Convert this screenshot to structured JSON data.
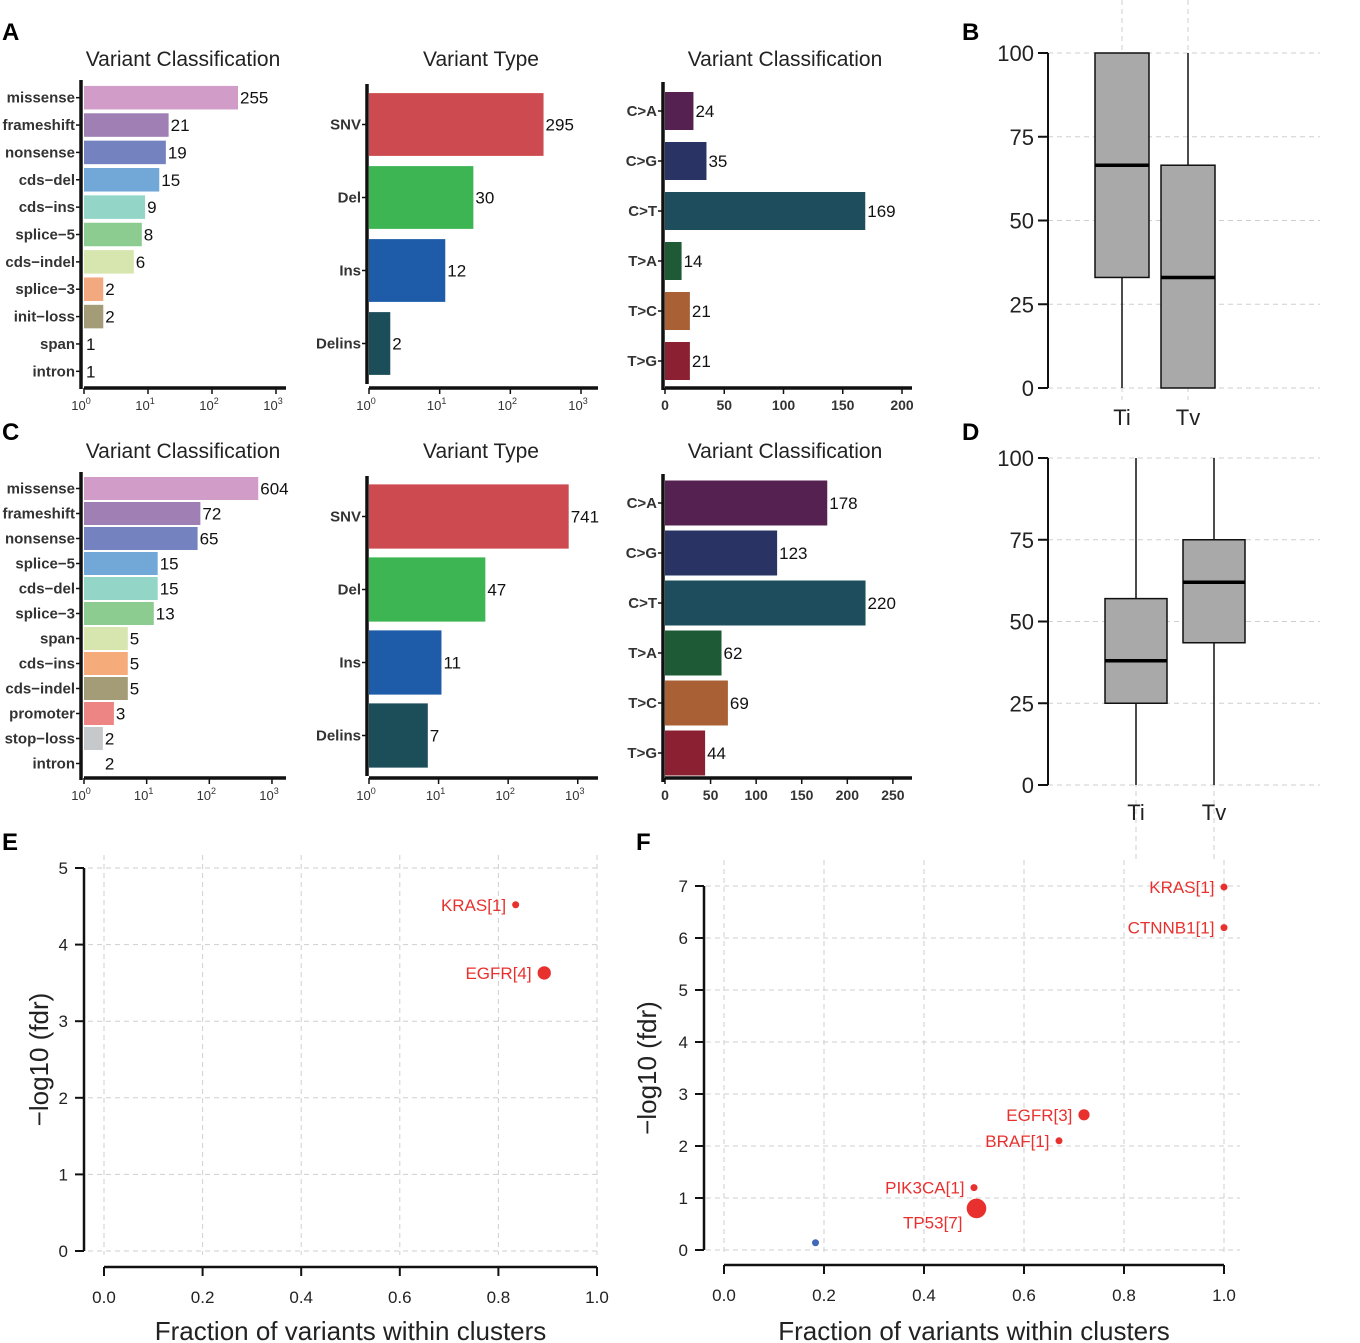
{
  "panels": {
    "A": {
      "label": "A",
      "classification": {
        "type": "bar",
        "orientation": "horizontal",
        "scale": "log10",
        "title": "Variant Classification",
        "categories": [
          "missense",
          "frameshift",
          "nonsense",
          "cds−del",
          "cds−ins",
          "splice−5",
          "cds−indel",
          "splice−3",
          "init−loss",
          "span",
          "intron"
        ],
        "values": [
          255,
          21,
          19,
          15,
          9,
          8,
          6,
          2,
          2,
          1,
          1
        ],
        "colors": [
          "#d29cc9",
          "#a07fb5",
          "#7482c0",
          "#72a8d8",
          "#93d6c8",
          "#8dcc90",
          "#d7e6ae",
          "#f2a97f",
          "#a39c76",
          "#ffffff",
          "#ffffff"
        ],
        "xlim": [
          1,
          1000
        ],
        "ticks": [
          {
            "v": 1,
            "b": "10",
            "e": "0"
          },
          {
            "v": 10,
            "b": "10",
            "e": "1"
          },
          {
            "v": 100,
            "b": "10",
            "e": "2"
          },
          {
            "v": 1000,
            "b": "10",
            "e": "3"
          }
        ]
      },
      "type": {
        "type": "bar",
        "orientation": "horizontal",
        "scale": "log10",
        "title": "Variant Type",
        "categories": [
          "SNV",
          "Del",
          "Ins",
          "Delins"
        ],
        "values": [
          295,
          30,
          12,
          2
        ],
        "colors": [
          "#cc4a50",
          "#3db553",
          "#1e5ca9",
          "#1c4e5a"
        ],
        "xlim": [
          1,
          1000
        ],
        "ticks": [
          {
            "v": 1,
            "b": "10",
            "e": "0"
          },
          {
            "v": 10,
            "b": "10",
            "e": "1"
          },
          {
            "v": 100,
            "b": "10",
            "e": "2"
          },
          {
            "v": 1000,
            "b": "10",
            "e": "3"
          }
        ]
      },
      "snv": {
        "type": "bar",
        "orientation": "horizontal",
        "scale": "linear",
        "title": "Variant Classification",
        "categories": [
          "C>A",
          "C>G",
          "C>T",
          "T>A",
          "T>C",
          "T>G"
        ],
        "values": [
          24,
          35,
          169,
          14,
          21,
          21
        ],
        "colors": [
          "#552150",
          "#2a3464",
          "#1e4e5e",
          "#1d5a35",
          "#a86034",
          "#8a2032"
        ],
        "xlim": [
          0,
          200
        ],
        "ticks": [
          {
            "v": 0,
            "t": "0"
          },
          {
            "v": 50,
            "t": "50"
          },
          {
            "v": 100,
            "t": "100"
          },
          {
            "v": 150,
            "t": "150"
          },
          {
            "v": 200,
            "t": "200"
          }
        ]
      }
    },
    "B": {
      "label": "B",
      "type": "box",
      "categories": [
        "Ti",
        "Tv"
      ],
      "boxes": [
        {
          "min": 0,
          "q1": 33,
          "median": 66.5,
          "q3": 100,
          "max": 100
        },
        {
          "min": 0,
          "q1": 0,
          "median": 33,
          "q3": 66.5,
          "max": 100
        }
      ],
      "ylim": [
        0,
        100
      ],
      "yticks": [
        "0",
        "25",
        "50",
        "75",
        "100"
      ]
    },
    "C": {
      "label": "C",
      "classification": {
        "type": "bar",
        "orientation": "horizontal",
        "scale": "log10",
        "title": "Variant Classification",
        "categories": [
          "missense",
          "frameshift",
          "nonsense",
          "splice−5",
          "cds−del",
          "splice−3",
          "span",
          "cds−ins",
          "cds−indel",
          "promoter",
          "stop−loss",
          "intron"
        ],
        "values": [
          604,
          72,
          65,
          15,
          15,
          13,
          5,
          5,
          5,
          3,
          2,
          2
        ],
        "colors": [
          "#d29cc9",
          "#a07fb5",
          "#7482c0",
          "#72a8d8",
          "#93d6c8",
          "#8dcc90",
          "#d7e6ae",
          "#f6ab7b",
          "#a39c76",
          "#ec8584",
          "#c5c9cc",
          "#ffffff"
        ],
        "xlim": [
          1,
          1500
        ],
        "ticks": [
          {
            "v": 1,
            "b": "10",
            "e": "0"
          },
          {
            "v": 10,
            "b": "10",
            "e": "1"
          },
          {
            "v": 100,
            "b": "10",
            "e": "2"
          },
          {
            "v": 1000,
            "b": "10",
            "e": "3"
          }
        ]
      },
      "type": {
        "type": "bar",
        "orientation": "horizontal",
        "scale": "log10",
        "title": "Variant Type",
        "categories": [
          "SNV",
          "Del",
          "Ins",
          "Delins"
        ],
        "values": [
          741,
          47,
          11,
          7
        ],
        "colors": [
          "#cc4a50",
          "#3db553",
          "#1e5ca9",
          "#1c4e5a"
        ],
        "xlim": [
          1,
          1500
        ],
        "ticks": [
          {
            "v": 1,
            "b": "10",
            "e": "0"
          },
          {
            "v": 10,
            "b": "10",
            "e": "1"
          },
          {
            "v": 100,
            "b": "10",
            "e": "2"
          },
          {
            "v": 1000,
            "b": "10",
            "e": "3"
          }
        ]
      },
      "snv": {
        "type": "bar",
        "orientation": "horizontal",
        "scale": "linear",
        "title": "Variant Classification",
        "categories": [
          "C>A",
          "C>G",
          "C>T",
          "T>A",
          "T>C",
          "T>G"
        ],
        "values": [
          178,
          123,
          220,
          62,
          69,
          44
        ],
        "colors": [
          "#552150",
          "#2a3464",
          "#1e4e5e",
          "#1d5a35",
          "#a86034",
          "#8a2032"
        ],
        "xlim": [
          0,
          260
        ],
        "ticks": [
          {
            "v": 0,
            "t": "0"
          },
          {
            "v": 50,
            "t": "50"
          },
          {
            "v": 100,
            "t": "100"
          },
          {
            "v": 150,
            "t": "150"
          },
          {
            "v": 200,
            "t": "200"
          },
          {
            "v": 250,
            "t": "250"
          }
        ]
      }
    },
    "D": {
      "label": "D",
      "type": "box",
      "categories": [
        "Ti",
        "Tv"
      ],
      "boxes": [
        {
          "min": 0,
          "q1": 25,
          "median": 38,
          "q3": 57,
          "max": 100
        },
        {
          "min": 0,
          "q1": 43.5,
          "median": 62,
          "q3": 75,
          "max": 100
        }
      ],
      "ylim": [
        0,
        100
      ],
      "yticks": [
        "0",
        "25",
        "50",
        "75",
        "100"
      ]
    },
    "E": {
      "label": "E",
      "type": "scatter",
      "xlabel": "Fraction of variants within clusters",
      "ylabel": "−log10 (fdr)",
      "xlim": [
        0,
        1
      ],
      "ylim": [
        0,
        5
      ],
      "xticks": [
        "0.0",
        "0.2",
        "0.4",
        "0.6",
        "0.8",
        "1.0"
      ],
      "yticks": [
        "0",
        "1",
        "2",
        "3",
        "4",
        "5"
      ],
      "points": [
        {
          "label": "KRAS[1]",
          "x": 0.835,
          "y": 4.52,
          "size": 1,
          "color": "#e8312e"
        },
        {
          "label": "EGFR[4]",
          "x": 0.893,
          "y": 3.63,
          "size": 4,
          "color": "#e8312e"
        }
      ]
    },
    "F": {
      "label": "F",
      "type": "scatter",
      "xlabel": "Fraction of variants within clusters",
      "ylabel": "−log10 (fdr)",
      "xlim": [
        0,
        1
      ],
      "ylim": [
        0,
        7
      ],
      "xticks": [
        "0.0",
        "0.2",
        "0.4",
        "0.6",
        "0.8",
        "1.0"
      ],
      "yticks": [
        "0",
        "1",
        "2",
        "3",
        "4",
        "5",
        "6",
        "7"
      ],
      "points": [
        {
          "label": "KRAS[1]",
          "x": 1.0,
          "y": 6.98,
          "size": 1,
          "color": "#e8312e"
        },
        {
          "label": "CTNNB1[1]",
          "x": 1.0,
          "y": 6.2,
          "size": 1,
          "color": "#e8312e"
        },
        {
          "label": "EGFR[3]",
          "x": 0.72,
          "y": 2.6,
          "size": 3,
          "color": "#e8312e"
        },
        {
          "label": "BRAF[1]",
          "x": 0.67,
          "y": 2.1,
          "size": 1,
          "color": "#e8312e"
        },
        {
          "label": "PIK3CA[1]",
          "x": 0.5,
          "y": 1.2,
          "size": 1,
          "color": "#e8312e"
        },
        {
          "label": "TP53[7]",
          "x": 0.505,
          "y": 0.8,
          "size": 7,
          "color": "#e8312e"
        },
        {
          "label": "",
          "x": 0.183,
          "y": 0.14,
          "size": 1,
          "color": "#4169b8"
        }
      ]
    }
  }
}
